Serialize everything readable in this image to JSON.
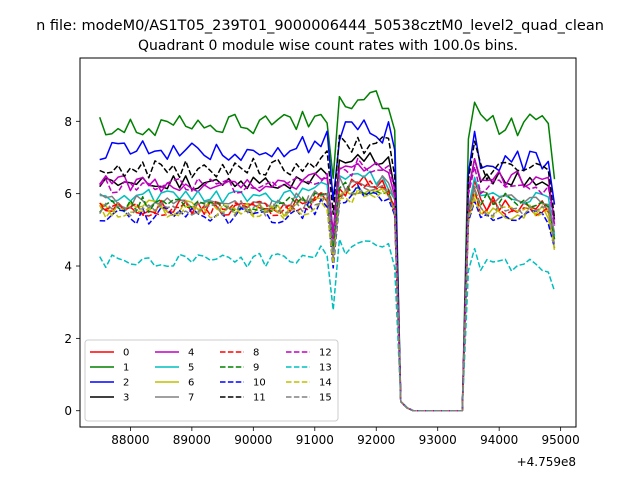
{
  "figure": {
    "suptitle": "n file: modeM0/AS1T05_239T01_9000006444_50538cztM0_level2_quad_clean"
  },
  "chart_data": {
    "type": "line",
    "title": "Quadrant 0 module wise count rates with 100.0s bins.",
    "xlabel": "",
    "ylabel": "",
    "offset_label": "+4.759e8",
    "xlim": [
      87180,
      95250
    ],
    "ylim": [
      -0.45,
      9.75
    ],
    "x_ticks": [
      88000,
      89000,
      90000,
      91000,
      92000,
      93000,
      94000,
      95000
    ],
    "x_tick_labels": [
      "88000",
      "89000",
      "90000",
      "91000",
      "92000",
      "93000",
      "94000",
      "95000"
    ],
    "y_ticks": [
      0,
      2,
      4,
      6,
      8
    ],
    "y_tick_labels": [
      "0",
      "2",
      "4",
      "6",
      "8"
    ],
    "grid": false,
    "legend_position": "lower-left",
    "legend_columns": 4,
    "segments": [
      {
        "x0": 87500,
        "x1": 91200,
        "n": 38
      },
      {
        "x0": 91300,
        "x1": 92300,
        "n": 11
      },
      {
        "x0": 92400,
        "x1": 93400,
        "n": 11
      },
      {
        "x0": 93500,
        "x1": 94900,
        "n": 15
      }
    ],
    "series": [
      {
        "name": "0",
        "color": "#ff0000",
        "dash": "solid",
        "level": 5.6,
        "amp": 0.22,
        "peak": 6.5,
        "post": 5.7,
        "seed": 1
      },
      {
        "name": "1",
        "color": "#008000",
        "dash": "solid",
        "level": 7.9,
        "amp": 0.3,
        "peak": 8.7,
        "post": 7.9,
        "seed": 2
      },
      {
        "name": "2",
        "color": "#0000ff",
        "dash": "solid",
        "level": 7.2,
        "amp": 0.28,
        "peak": 8.1,
        "post": 6.9,
        "seed": 3
      },
      {
        "name": "3",
        "color": "#000000",
        "dash": "solid",
        "level": 6.3,
        "amp": 0.2,
        "peak": 7.3,
        "post": 6.4,
        "seed": 4
      },
      {
        "name": "4",
        "color": "#bf00bf",
        "dash": "solid",
        "level": 6.3,
        "amp": 0.25,
        "peak": 7.0,
        "post": 6.4,
        "seed": 5
      },
      {
        "name": "5",
        "color": "#00bfbf",
        "dash": "solid",
        "level": 5.9,
        "amp": 0.22,
        "peak": 6.6,
        "post": 5.9,
        "seed": 6
      },
      {
        "name": "6",
        "color": "#bfbf00",
        "dash": "solid",
        "level": 5.6,
        "amp": 0.22,
        "peak": 6.2,
        "post": 5.5,
        "seed": 7
      },
      {
        "name": "7",
        "color": "#808080",
        "dash": "solid",
        "level": 5.8,
        "amp": 0.2,
        "peak": 6.4,
        "post": 5.9,
        "seed": 8
      },
      {
        "name": "8",
        "color": "#ff0000",
        "dash": "dashed",
        "level": 5.6,
        "amp": 0.22,
        "peak": 6.3,
        "post": 5.6,
        "seed": 9
      },
      {
        "name": "9",
        "color": "#008000",
        "dash": "dashed",
        "level": 5.7,
        "amp": 0.22,
        "peak": 6.3,
        "post": 5.8,
        "seed": 10
      },
      {
        "name": "10",
        "color": "#0000ff",
        "dash": "dashed",
        "level": 5.4,
        "amp": 0.25,
        "peak": 6.1,
        "post": 5.4,
        "seed": 11
      },
      {
        "name": "11",
        "color": "#000000",
        "dash": "dashed",
        "level": 6.7,
        "amp": 0.28,
        "peak": 7.6,
        "post": 6.6,
        "seed": 12
      },
      {
        "name": "12",
        "color": "#bf00bf",
        "dash": "dashed",
        "level": 6.2,
        "amp": 0.22,
        "peak": 6.9,
        "post": 6.2,
        "seed": 13
      },
      {
        "name": "13",
        "color": "#00bfbf",
        "dash": "dashed",
        "level": 4.15,
        "amp": 0.2,
        "peak": 4.7,
        "post": 4.0,
        "seed": 14
      },
      {
        "name": "14",
        "color": "#bfbf00",
        "dash": "dashed",
        "level": 5.5,
        "amp": 0.2,
        "peak": 6.1,
        "post": 5.5,
        "seed": 15
      },
      {
        "name": "15",
        "color": "#808080",
        "dash": "dashed",
        "level": 5.6,
        "amp": 0.22,
        "peak": 6.2,
        "post": 5.6,
        "seed": 16
      }
    ]
  }
}
